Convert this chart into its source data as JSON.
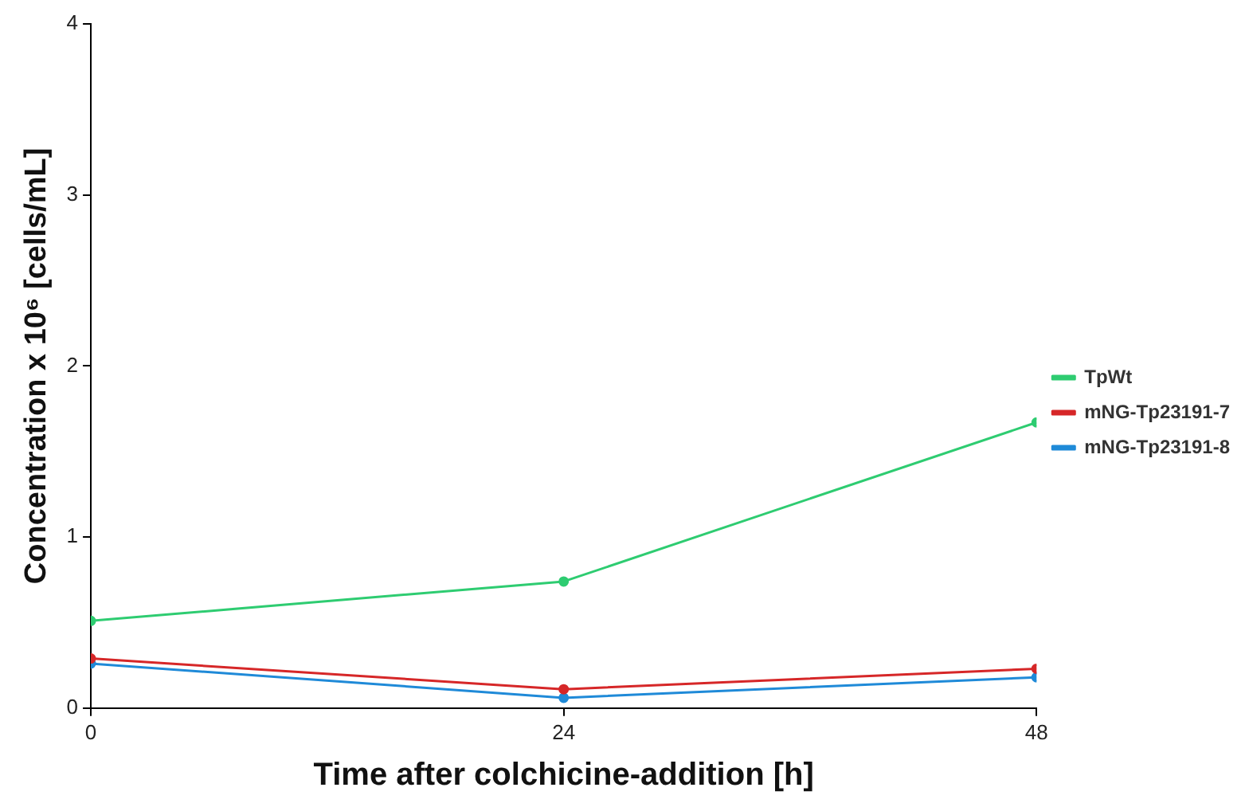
{
  "chart_data": {
    "type": "line",
    "xlabel": "Time after colchicine-addition [h]",
    "ylabel": "Concentration x 10⁶ [cells/mL]",
    "x": [
      0,
      24,
      48
    ],
    "xlim": [
      0,
      48
    ],
    "xticks": [
      0,
      24,
      48
    ],
    "ylim": [
      0,
      4
    ],
    "yticks": [
      0,
      1,
      2,
      3,
      4
    ],
    "grid": false,
    "legend": "right",
    "marker": "circle",
    "line_style": "solid",
    "series": [
      {
        "name": "TpWt",
        "color": "#2ecc71",
        "values": [
          0.51,
          0.74,
          1.67
        ]
      },
      {
        "name": "mNG-Tp23191-7",
        "color": "#d62728",
        "values": [
          0.29,
          0.11,
          0.23
        ]
      },
      {
        "name": "mNG-Tp23191-8",
        "color": "#1f8ad8",
        "values": [
          0.26,
          0.06,
          0.18
        ]
      }
    ]
  }
}
